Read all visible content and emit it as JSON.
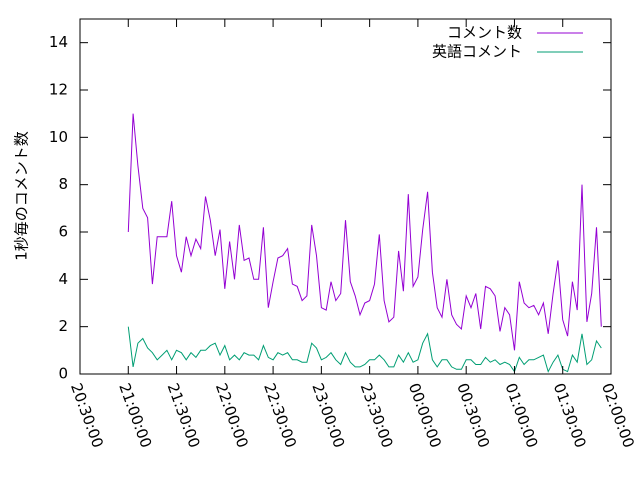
{
  "chart_data": {
    "type": "line",
    "title": "",
    "xlabel": "",
    "ylabel": "1秒毎のコメント数",
    "xlim": [
      "20:30:00",
      "02:00:00"
    ],
    "ylim": [
      0,
      15
    ],
    "grid": false,
    "legend_position": "top-right",
    "x_ticks": [
      "20:30:00",
      "21:00:00",
      "21:30:00",
      "22:00:00",
      "22:30:00",
      "23:00:00",
      "23:30:00",
      "00:00:00",
      "00:30:00",
      "01:00:00",
      "01:30:00",
      "02:00:00"
    ],
    "y_ticks": [
      0,
      2,
      4,
      6,
      8,
      10,
      12,
      14
    ],
    "x_start": "21:00:00",
    "x_step_minutes": 3,
    "series": [
      {
        "name": "コメント数",
        "color": "#9400d3",
        "values": [
          6.0,
          11.0,
          8.8,
          7.0,
          6.6,
          3.8,
          5.8,
          5.8,
          5.8,
          7.3,
          5.0,
          4.3,
          5.8,
          5.0,
          5.7,
          5.3,
          7.5,
          6.5,
          5.0,
          6.1,
          3.6,
          5.6,
          4.0,
          6.3,
          4.8,
          4.9,
          4.0,
          4.0,
          6.2,
          2.8,
          3.9,
          4.9,
          5.0,
          5.3,
          3.8,
          3.7,
          3.1,
          3.3,
          6.3,
          5.0,
          2.8,
          2.7,
          3.9,
          3.1,
          3.4,
          6.5,
          3.9,
          3.3,
          2.5,
          3.0,
          3.1,
          3.8,
          5.9,
          3.1,
          2.2,
          2.4,
          5.2,
          3.5,
          7.6,
          3.7,
          4.1,
          6.1,
          7.7,
          4.3,
          2.8,
          2.4,
          4.0,
          2.5,
          2.1,
          1.9,
          3.3,
          2.8,
          3.4,
          1.9,
          3.7,
          3.6,
          3.3,
          1.8,
          2.8,
          2.5,
          1.0,
          3.9,
          3.0,
          2.8,
          2.9,
          2.5,
          3.0,
          1.7,
          3.4,
          4.8,
          2.3,
          1.6,
          3.9,
          2.7,
          8.0,
          2.2,
          3.4,
          6.2,
          2.0
        ]
      },
      {
        "name": "英語コメント",
        "color": "#009e73",
        "values": [
          2.0,
          0.3,
          1.3,
          1.5,
          1.1,
          0.9,
          0.6,
          0.8,
          1.0,
          0.6,
          1.0,
          0.9,
          0.6,
          0.9,
          0.7,
          1.0,
          1.0,
          1.2,
          1.3,
          0.8,
          1.2,
          0.6,
          0.8,
          0.6,
          0.9,
          0.8,
          0.8,
          0.6,
          1.2,
          0.7,
          0.6,
          0.9,
          0.8,
          0.9,
          0.6,
          0.6,
          0.5,
          0.5,
          1.3,
          1.1,
          0.6,
          0.7,
          0.9,
          0.6,
          0.4,
          0.9,
          0.5,
          0.3,
          0.3,
          0.4,
          0.6,
          0.6,
          0.8,
          0.6,
          0.3,
          0.3,
          0.8,
          0.5,
          0.9,
          0.5,
          0.6,
          1.3,
          1.7,
          0.6,
          0.3,
          0.6,
          0.6,
          0.3,
          0.2,
          0.2,
          0.6,
          0.6,
          0.4,
          0.4,
          0.7,
          0.5,
          0.6,
          0.4,
          0.5,
          0.4,
          0.1,
          0.7,
          0.4,
          0.6,
          0.6,
          0.7,
          0.8,
          0.1,
          0.5,
          0.8,
          0.2,
          0.1,
          0.8,
          0.5,
          1.7,
          0.4,
          0.6,
          1.4,
          1.1
        ]
      }
    ]
  }
}
